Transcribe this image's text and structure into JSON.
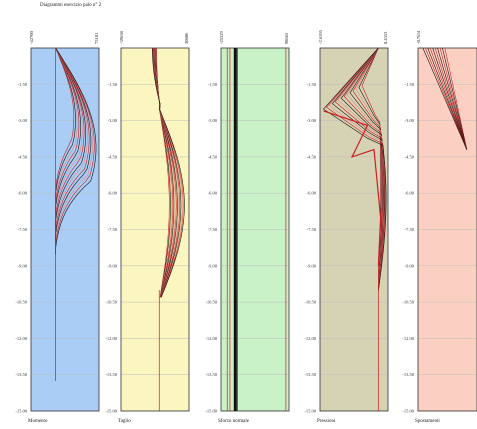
{
  "title": "Diagrammi esercizio palo n° 2",
  "colors": {
    "background": "#ffffff",
    "grid": "#bdbdbd",
    "border": "#333333",
    "line_black": "#111111",
    "line_red": "#cc1f1f",
    "line_pink": "#e08a8a"
  },
  "chart_data": [
    {
      "type": "line",
      "label": "Momento",
      "bg": "#a9cdf5",
      "xmin_label": "-42700",
      "xmax_label": "75101",
      "xlim": [
        -42700,
        75101
      ],
      "axis_x": 0,
      "ylim": [
        0,
        -15
      ],
      "y_ticks": [
        "-1.50",
        "-3.00",
        "-4.50",
        "-6.00",
        "-7.50",
        "-9.00",
        "-10.50",
        "-12.00",
        "-13.50",
        "-15.00"
      ],
      "y_tick_values": [
        -1.5,
        -3,
        -4.5,
        -6,
        -7.5,
        -9,
        -10.5,
        -12,
        -13.5,
        -15
      ],
      "shape": "bulge_right",
      "peak_depth": -3.2,
      "peak_value": 70000,
      "end_depth": -8.5
    },
    {
      "type": "line",
      "label": "Taglio",
      "bg": "#fbf6bf",
      "xmin_label": "-39658",
      "xmax_label": "30806",
      "xlim": [
        -39658,
        30806
      ],
      "axis_x": 0,
      "ylim": [
        0,
        -15
      ],
      "y_ticks": [
        "-1.50",
        "-3.00",
        "-4.50",
        "-6.00",
        "-7.50",
        "-9.00",
        "-10.50",
        "-12.00",
        "-13.50",
        "-15.00"
      ],
      "y_tick_values": [
        -1.5,
        -3,
        -4.5,
        -6,
        -7.5,
        -9,
        -10.5,
        -12,
        -13.5,
        -15
      ],
      "shape": "shear",
      "peak_depth": -5.0,
      "peak_value": 26000,
      "neg_value": -36000,
      "end_depth": -10.5
    },
    {
      "type": "line",
      "label": "Sforzo normale",
      "bg": "#c9f2c9",
      "xmin_label": "-25329",
      "xmax_label": "98665",
      "xlim": [
        -25329,
        98665
      ],
      "axis_x": 0,
      "ylim": [
        0,
        -15
      ],
      "y_ticks": [
        "-1.50",
        "-3.00",
        "-4.50",
        "-6.00",
        "-7.50",
        "-9.00",
        "-10.50",
        "-12.00",
        "-13.50",
        "-15.00"
      ],
      "y_tick_values": [
        -1.5,
        -3,
        -4.5,
        -6,
        -7.5,
        -9,
        -10.5,
        -12,
        -13.5,
        -15
      ],
      "shape": "vertical",
      "lines_at": [
        -14000,
        -9000,
        0,
        2000,
        3500,
        5000,
        93000
      ]
    },
    {
      "type": "line",
      "label": "Pressioni",
      "bg": "#d6d3b4",
      "xmin_label": "-2.6595",
      "xmax_label": "0.4353",
      "xlim": [
        -2.6595,
        0.4353
      ],
      "axis_x": 0,
      "ylim": [
        0,
        -15
      ],
      "y_ticks": [
        "-1.50",
        "-3.00",
        "-4.50",
        "-6.00",
        "-7.50",
        "-9.00",
        "-10.50",
        "-12.00",
        "-13.50",
        "-15.00"
      ],
      "y_tick_values": [
        -1.5,
        -3,
        -4.5,
        -6,
        -7.5,
        -9,
        -10.5,
        -12,
        -13.5,
        -15
      ],
      "shape": "pressure",
      "peak_depth": -2.6,
      "peak_value": -2.5,
      "end_depth": -10.0
    },
    {
      "type": "line",
      "label": "Spostamenti",
      "bg": "#fbd0c2",
      "xmin_label": "-0.7651",
      "xmax_label": "",
      "xlim": [
        -0.7651,
        0.3
      ],
      "axis_x": 0,
      "ylim": [
        0,
        -15
      ],
      "y_ticks": [
        "-1.50",
        "-3.00",
        "-4.50",
        "-6.00",
        "-7.50",
        "-9.00",
        "-10.50",
        "-12.00",
        "-13.50",
        "-15.00"
      ],
      "y_tick_values": [
        -1.5,
        -3,
        -4.5,
        -6,
        -7.5,
        -9,
        -10.5,
        -12,
        -13.5,
        -15
      ],
      "shape": "displacement",
      "end_depth": -4.2
    }
  ]
}
